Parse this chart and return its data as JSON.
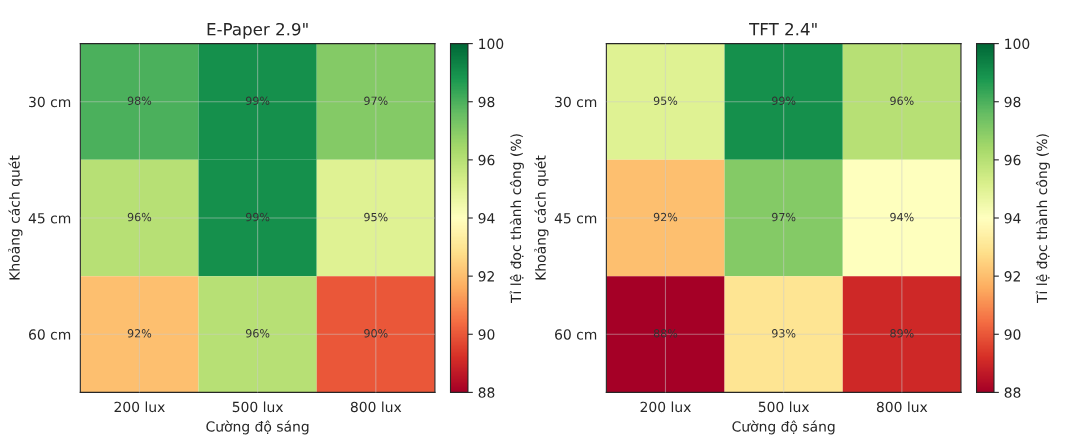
{
  "chart_data": [
    {
      "type": "heatmap",
      "title": "E-Paper 2.9\"",
      "xlabel": "Cường độ sáng",
      "ylabel": "Khoảng cách quét",
      "clabel": "Tỉ lệ đọc thành công (%)",
      "categories": [
        "200 lux",
        "500 lux",
        "800 lux"
      ],
      "y_categories": [
        "30 cm",
        "45 cm",
        "60 cm"
      ],
      "cells": [
        [
          98,
          99,
          97
        ],
        [
          96,
          99,
          95
        ],
        [
          92,
          96,
          90
        ]
      ],
      "cell_labels": [
        [
          "98%",
          "99%",
          "97%"
        ],
        [
          "96%",
          "99%",
          "95%"
        ],
        [
          "92%",
          "96%",
          "90%"
        ]
      ],
      "clim": [
        88,
        100
      ],
      "cticks": [
        88,
        90,
        92,
        94,
        96,
        98,
        100
      ],
      "grid": true
    },
    {
      "type": "heatmap",
      "title": "TFT 2.4\"",
      "xlabel": "Cường độ sáng",
      "ylabel": "Khoảng cách quét",
      "clabel": "Tỉ lệ đọc thành công (%)",
      "categories": [
        "200 lux",
        "500 lux",
        "800 lux"
      ],
      "y_categories": [
        "30 cm",
        "45 cm",
        "60 cm"
      ],
      "cells": [
        [
          95,
          99,
          96
        ],
        [
          92,
          97,
          94
        ],
        [
          88,
          93,
          89
        ]
      ],
      "cell_labels": [
        [
          "95%",
          "99%",
          "96%"
        ],
        [
          "92%",
          "97%",
          "94%"
        ],
        [
          "88%",
          "93%",
          "89%"
        ]
      ],
      "clim": [
        88,
        100
      ],
      "cticks": [
        88,
        90,
        92,
        94,
        96,
        98,
        100
      ],
      "grid": true
    }
  ]
}
